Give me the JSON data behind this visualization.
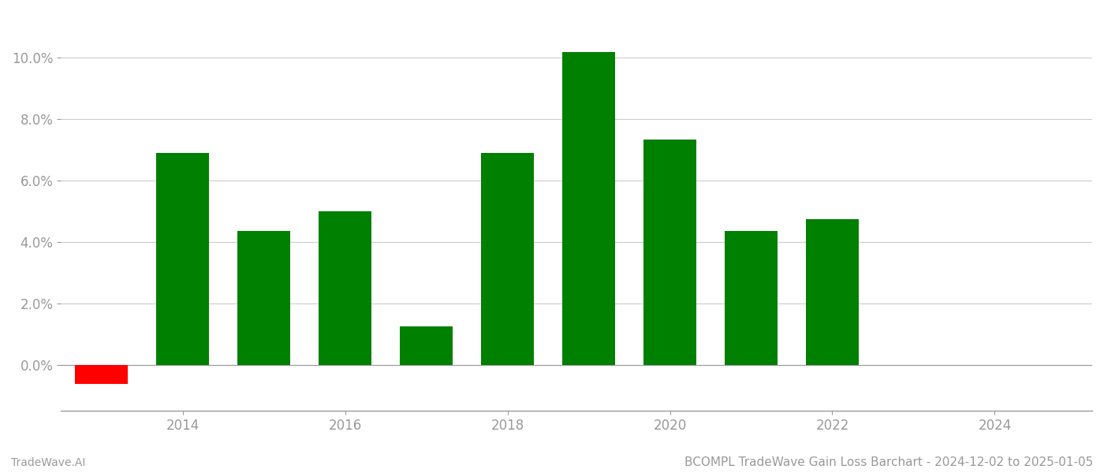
{
  "years": [
    2013,
    2014,
    2015,
    2016,
    2017,
    2018,
    2019,
    2020,
    2021,
    2022,
    2023
  ],
  "values": [
    -0.0062,
    0.069,
    0.0435,
    0.05,
    0.0125,
    0.069,
    0.102,
    0.0735,
    0.0435,
    0.0475,
    0.0
  ],
  "colors": [
    "#ff0000",
    "#008000",
    "#008000",
    "#008000",
    "#008000",
    "#008000",
    "#008000",
    "#008000",
    "#008000",
    "#008000",
    "#008000"
  ],
  "ylim_min": -0.015,
  "ylim_max": 0.115,
  "yticks": [
    0.0,
    0.02,
    0.04,
    0.06,
    0.08,
    0.1
  ],
  "xticks": [
    2014,
    2016,
    2018,
    2020,
    2022,
    2024
  ],
  "xlim_min": 2012.5,
  "xlim_max": 2025.2,
  "bar_width": 0.65,
  "title": "BCOMPL TradeWave Gain Loss Barchart - 2024-12-02 to 2025-01-05",
  "footer_left": "TradeWave.AI",
  "background_color": "#ffffff",
  "grid_color": "#cccccc",
  "axis_color": "#999999",
  "title_fontsize": 11,
  "tick_fontsize": 12,
  "footer_fontsize": 10
}
